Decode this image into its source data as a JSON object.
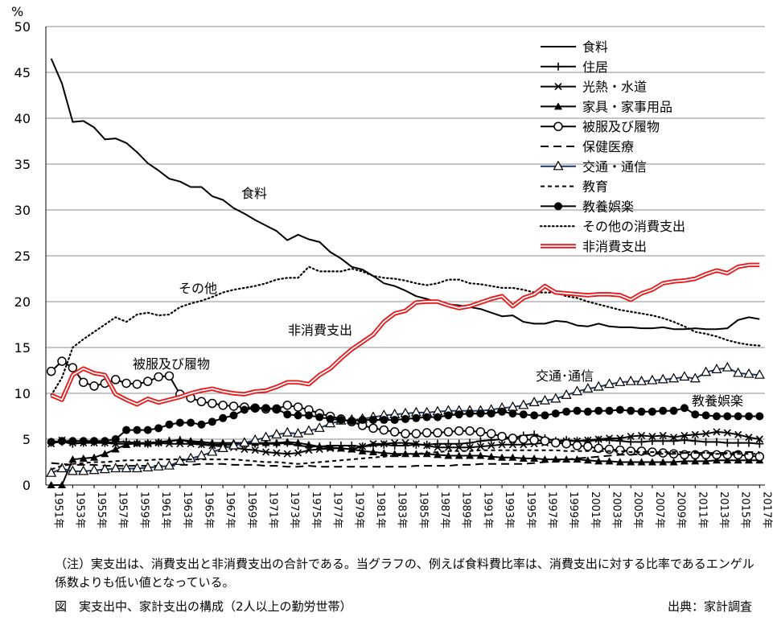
{
  "chart_data": {
    "type": "line",
    "y_unit": "%",
    "ylim": [
      0,
      50
    ],
    "yticks": [
      0,
      5,
      10,
      15,
      20,
      25,
      30,
      35,
      40,
      45,
      50
    ],
    "grid": "horizontal",
    "legend_position": "top-right",
    "x": [
      "1951年",
      "1952年",
      "1953年",
      "1954年",
      "1955年",
      "1956年",
      "1957年",
      "1958年",
      "1959年",
      "1960年",
      "1961年",
      "1962年",
      "1963年",
      "1964年",
      "1965年",
      "1966年",
      "1967年",
      "1968年",
      "1969年",
      "1970年",
      "1971年",
      "1972年",
      "1973年",
      "1974年",
      "1975年",
      "1976年",
      "1977年",
      "1978年",
      "1979年",
      "1980年",
      "1981年",
      "1982年",
      "1983年",
      "1984年",
      "1985年",
      "1986年",
      "1987年",
      "1988年",
      "1989年",
      "1990年",
      "1991年",
      "1992年",
      "1993年",
      "1994年",
      "1995年",
      "1996年",
      "1997年",
      "1998年",
      "1999年",
      "2000年",
      "2001年",
      "2002年",
      "2003年",
      "2004年",
      "2005年",
      "2006年",
      "2007年",
      "2008年",
      "2009年",
      "2010年",
      "2011年",
      "2012年",
      "2013年",
      "2014年",
      "2015年",
      "2016年",
      "2017年"
    ],
    "x_tick_labels": [
      "1951年",
      "1953年",
      "1955年",
      "1957年",
      "1959年",
      "1961年",
      "1963年",
      "1965年",
      "1967年",
      "1969年",
      "1971年",
      "1973年",
      "1975年",
      "1977年",
      "1979年",
      "1981年",
      "1983年",
      "1985年",
      "1987年",
      "1989年",
      "1991年",
      "1993年",
      "1995年",
      "1997年",
      "1999年",
      "2001年",
      "2003年",
      "2005年",
      "2007年",
      "2009年",
      "2011年",
      "2013年",
      "2015年",
      "2017年"
    ],
    "series": [
      {
        "name": "食料",
        "color": "#000000",
        "marker": "none",
        "dash": "solid",
        "values": [
          46.5,
          43.8,
          39.6,
          39.7,
          39.0,
          37.7,
          37.8,
          37.3,
          36.3,
          35.1,
          34.3,
          33.4,
          33.1,
          32.5,
          32.5,
          31.5,
          31.1,
          30.2,
          29.6,
          28.9,
          28.3,
          27.7,
          26.7,
          27.3,
          26.8,
          26.5,
          25.4,
          24.7,
          23.8,
          23.5,
          22.8,
          22.0,
          21.7,
          21.2,
          20.6,
          20.3,
          19.9,
          19.7,
          19.6,
          19.4,
          19.2,
          18.8,
          18.4,
          18.5,
          17.8,
          17.6,
          17.6,
          17.9,
          17.8,
          17.4,
          17.3,
          17.6,
          17.3,
          17.2,
          17.2,
          17.1,
          17.1,
          17.2,
          17.0,
          17.0,
          17.1,
          17.0,
          17.0,
          17.1,
          18.0,
          18.3,
          18.1
        ]
      },
      {
        "name": "住居",
        "color": "#000000",
        "marker": "plus",
        "dash": "solid",
        "values": [
          4.6,
          4.7,
          4.5,
          4.6,
          4.7,
          4.6,
          4.7,
          4.7,
          4.6,
          4.5,
          4.6,
          4.8,
          4.9,
          4.7,
          4.5,
          4.4,
          4.4,
          4.4,
          4.5,
          4.5,
          4.5,
          4.5,
          4.6,
          4.3,
          4.2,
          4.2,
          4.3,
          4.3,
          4.3,
          4.2,
          4.3,
          4.4,
          4.3,
          4.3,
          4.4,
          4.4,
          4.5,
          4.5,
          4.5,
          4.6,
          4.8,
          4.9,
          5.0,
          5.1,
          5.4,
          5.5,
          5.1,
          4.8,
          4.9,
          4.8,
          4.8,
          4.9,
          4.9,
          4.8,
          4.7,
          4.7,
          4.8,
          4.8,
          4.8,
          4.9,
          4.8,
          4.7,
          4.7,
          4.6,
          4.6,
          4.6,
          4.5
        ]
      },
      {
        "name": "光熱・水道",
        "color": "#000000",
        "marker": "x",
        "dash": "solid",
        "values": [
          4.5,
          4.9,
          4.6,
          4.6,
          4.6,
          4.6,
          4.5,
          4.5,
          4.5,
          4.5,
          4.6,
          4.5,
          4.5,
          4.5,
          4.4,
          4.3,
          4.2,
          4.1,
          3.9,
          3.8,
          3.6,
          3.5,
          3.4,
          3.5,
          3.8,
          3.9,
          4.0,
          4.0,
          3.9,
          4.2,
          4.5,
          4.5,
          4.6,
          4.6,
          4.5,
          4.3,
          4.1,
          4.1,
          4.1,
          4.1,
          4.2,
          4.3,
          4.4,
          4.4,
          4.4,
          4.5,
          4.6,
          4.7,
          4.8,
          4.8,
          4.9,
          5.0,
          5.1,
          5.1,
          5.3,
          5.4,
          5.3,
          5.4,
          5.2,
          5.4,
          5.5,
          5.6,
          5.8,
          5.7,
          5.5,
          5.2,
          5.0
        ]
      },
      {
        "name": "家具・家事用品",
        "color": "#000000",
        "marker": "triangle-filled",
        "dash": "solid",
        "values": [
          0.0,
          0.0,
          2.8,
          2.9,
          3.0,
          3.4,
          3.9,
          4.4,
          4.6,
          4.6,
          4.7,
          4.8,
          4.9,
          4.8,
          4.7,
          4.6,
          4.6,
          4.6,
          4.6,
          4.6,
          4.6,
          4.6,
          4.7,
          4.6,
          4.4,
          4.2,
          4.1,
          4.0,
          3.9,
          3.7,
          3.6,
          3.5,
          3.4,
          3.4,
          3.4,
          3.4,
          3.3,
          3.2,
          3.2,
          3.2,
          3.2,
          3.1,
          3.0,
          3.0,
          2.9,
          2.9,
          2.8,
          2.8,
          2.8,
          2.8,
          2.7,
          2.6,
          2.6,
          2.5,
          2.5,
          2.5,
          2.5,
          2.5,
          2.5,
          2.6,
          2.6,
          2.6,
          2.7,
          2.7,
          2.7,
          2.7,
          2.7
        ]
      },
      {
        "name": "被服及び履物",
        "color": "#000000",
        "marker": "circle-open",
        "dash": "solid",
        "values": [
          12.4,
          13.5,
          12.8,
          11.2,
          10.8,
          11.1,
          11.5,
          11.1,
          11.0,
          11.3,
          11.8,
          11.9,
          9.9,
          9.5,
          9.1,
          8.9,
          8.7,
          8.6,
          8.5,
          8.4,
          8.3,
          8.3,
          8.7,
          8.5,
          8.2,
          7.8,
          7.5,
          7.2,
          6.9,
          6.5,
          6.2,
          6.0,
          5.8,
          5.6,
          5.6,
          5.7,
          5.7,
          5.8,
          5.9,
          5.9,
          5.8,
          5.6,
          5.3,
          5.1,
          5.0,
          4.9,
          4.8,
          4.6,
          4.5,
          4.3,
          4.2,
          4.0,
          3.9,
          3.8,
          3.7,
          3.7,
          3.6,
          3.5,
          3.4,
          3.3,
          3.3,
          3.3,
          3.3,
          3.3,
          3.3,
          3.2,
          3.1
        ]
      },
      {
        "name": "保健医療",
        "color": "#000000",
        "marker": "none",
        "dash": "longdash",
        "values": [
          2.4,
          2.3,
          2.2,
          2.2,
          2.2,
          2.1,
          2.1,
          2.1,
          2.1,
          2.1,
          2.1,
          2.1,
          2.2,
          2.2,
          2.3,
          2.3,
          2.3,
          2.2,
          2.2,
          2.2,
          2.1,
          2.1,
          2.0,
          2.0,
          2.1,
          2.0,
          2.0,
          2.0,
          2.0,
          2.0,
          2.0,
          2.0,
          2.0,
          2.0,
          2.1,
          2.1,
          2.1,
          2.1,
          2.2,
          2.2,
          2.3,
          2.3,
          2.3,
          2.3,
          2.3,
          2.4,
          2.5,
          2.6,
          2.8,
          2.9,
          3.0,
          3.1,
          3.2,
          3.3,
          3.3,
          3.4,
          3.4,
          3.4,
          3.4,
          3.5,
          3.5,
          3.5,
          3.5,
          3.5,
          3.6,
          3.6,
          3.6
        ]
      },
      {
        "name": "交通・通信",
        "color": "#1f3864",
        "marker": "triangle-open",
        "dash": "solid",
        "values": [
          1.3,
          1.8,
          1.5,
          1.5,
          1.6,
          1.7,
          1.8,
          1.8,
          1.8,
          1.9,
          2.0,
          2.1,
          2.6,
          2.9,
          3.2,
          3.6,
          4.0,
          4.3,
          4.6,
          4.9,
          5.2,
          5.5,
          5.7,
          5.6,
          5.9,
          6.2,
          6.7,
          7.0,
          7.1,
          7.2,
          7.4,
          7.6,
          7.7,
          7.8,
          7.9,
          7.9,
          8.0,
          8.1,
          8.1,
          8.1,
          8.1,
          8.2,
          8.4,
          8.5,
          8.7,
          9.0,
          9.2,
          9.4,
          9.8,
          10.2,
          10.5,
          10.7,
          11.0,
          11.2,
          11.3,
          11.3,
          11.4,
          11.5,
          11.6,
          11.8,
          11.6,
          12.3,
          12.6,
          12.8,
          12.2,
          12.1,
          12.0
        ]
      },
      {
        "name": "教育",
        "color": "#000000",
        "marker": "none",
        "dash": "shortdash",
        "values": [
          1.7,
          2.1,
          2.3,
          2.4,
          2.5,
          2.5,
          2.6,
          2.7,
          2.7,
          2.7,
          2.8,
          2.8,
          2.8,
          2.8,
          2.8,
          2.8,
          2.8,
          2.8,
          2.7,
          2.6,
          2.5,
          2.5,
          2.4,
          2.3,
          2.4,
          2.5,
          2.6,
          2.7,
          2.8,
          2.9,
          3.0,
          3.1,
          3.2,
          3.3,
          3.4,
          3.5,
          3.6,
          3.7,
          3.7,
          3.7,
          3.8,
          3.8,
          3.8,
          3.8,
          3.8,
          3.8,
          3.8,
          3.8,
          3.7,
          3.7,
          3.7,
          3.7,
          3.7,
          3.7,
          3.6,
          3.6,
          3.6,
          3.6,
          3.6,
          3.6,
          3.6,
          3.5,
          3.4,
          3.4,
          3.4,
          3.4,
          3.4
        ]
      },
      {
        "name": "教養娯楽",
        "color": "#000000",
        "marker": "circle-filled",
        "dash": "solid",
        "values": [
          4.7,
          4.8,
          4.8,
          4.8,
          4.8,
          4.8,
          5.0,
          6.0,
          6.0,
          6.0,
          6.2,
          6.6,
          6.8,
          6.8,
          6.6,
          6.9,
          7.3,
          7.6,
          8.2,
          8.4,
          8.4,
          8.3,
          7.7,
          7.6,
          7.6,
          7.4,
          7.2,
          7.1,
          7.0,
          7.1,
          7.1,
          7.1,
          7.1,
          7.2,
          7.3,
          7.4,
          7.4,
          7.6,
          7.7,
          7.8,
          7.8,
          7.8,
          8.0,
          7.8,
          7.7,
          7.6,
          7.6,
          7.8,
          8.0,
          8.1,
          8.0,
          8.1,
          8.1,
          8.2,
          8.1,
          8.0,
          8.0,
          8.1,
          8.1,
          8.4,
          7.7,
          7.6,
          7.5,
          7.5,
          7.5,
          7.5,
          7.5
        ]
      },
      {
        "name": "その他の消費支出",
        "color": "#000000",
        "marker": "none",
        "dash": "dotted",
        "values": [
          9.8,
          11.7,
          15.0,
          15.9,
          16.7,
          17.5,
          18.3,
          17.8,
          18.6,
          18.8,
          18.5,
          18.6,
          19.4,
          19.8,
          20.1,
          20.5,
          21.0,
          21.3,
          21.5,
          21.7,
          22.0,
          22.4,
          22.6,
          22.6,
          23.8,
          23.3,
          23.3,
          23.3,
          23.6,
          23.3,
          22.8,
          22.6,
          22.5,
          22.3,
          22.0,
          21.8,
          22.0,
          22.4,
          22.4,
          22.0,
          21.9,
          21.7,
          21.5,
          21.5,
          21.3,
          21.0,
          21.0,
          21.0,
          20.6,
          20.4,
          20.0,
          19.7,
          19.4,
          19.1,
          18.9,
          18.7,
          18.5,
          18.2,
          17.8,
          17.3,
          16.7,
          16.5,
          16.2,
          15.8,
          15.5,
          15.3,
          15.2
        ]
      },
      {
        "name": "非消費支出",
        "color": "#e8191a",
        "marker": "none",
        "dash": "double",
        "values": [
          9.8,
          9.3,
          12.0,
          12.7,
          12.2,
          12.0,
          9.9,
          9.3,
          8.8,
          9.4,
          9.0,
          9.3,
          9.6,
          10.0,
          10.3,
          10.5,
          10.2,
          10.0,
          9.9,
          10.2,
          10.3,
          10.7,
          11.2,
          11.2,
          11.0,
          12.0,
          12.7,
          13.8,
          14.8,
          15.6,
          16.4,
          17.8,
          18.7,
          19.0,
          19.9,
          20.0,
          20.0,
          19.6,
          19.3,
          19.5,
          19.9,
          20.3,
          20.6,
          19.5,
          20.4,
          20.8,
          21.7,
          21.0,
          20.9,
          20.8,
          20.7,
          20.8,
          20.8,
          20.7,
          20.2,
          20.9,
          21.3,
          22.0,
          22.2,
          22.3,
          22.5,
          23.0,
          23.4,
          23.1,
          23.8,
          24.0,
          24.0
        ]
      }
    ],
    "annotations": [
      {
        "text": "食料",
        "series": "食料"
      },
      {
        "text": "その他",
        "series": "その他の消費支出"
      },
      {
        "text": "非消費支出",
        "series": "非消費支出"
      },
      {
        "text": "被服及び履物",
        "series": "被服及び履物"
      },
      {
        "text": "交通･通信",
        "series": "交通・通信"
      },
      {
        "text": "教養娯楽",
        "series": "教養娯楽"
      }
    ]
  },
  "note": "（注）実支出は、消費支出と非消費支出の合計である。当グラフの、例えば食料費比率は、消費支出に対する比率であるエンゲル係数よりも低い値となっている。",
  "figure_title": "図　実支出中、家計支出の構成（2人以上の勤労世帯）",
  "source": "出典：家計調査"
}
